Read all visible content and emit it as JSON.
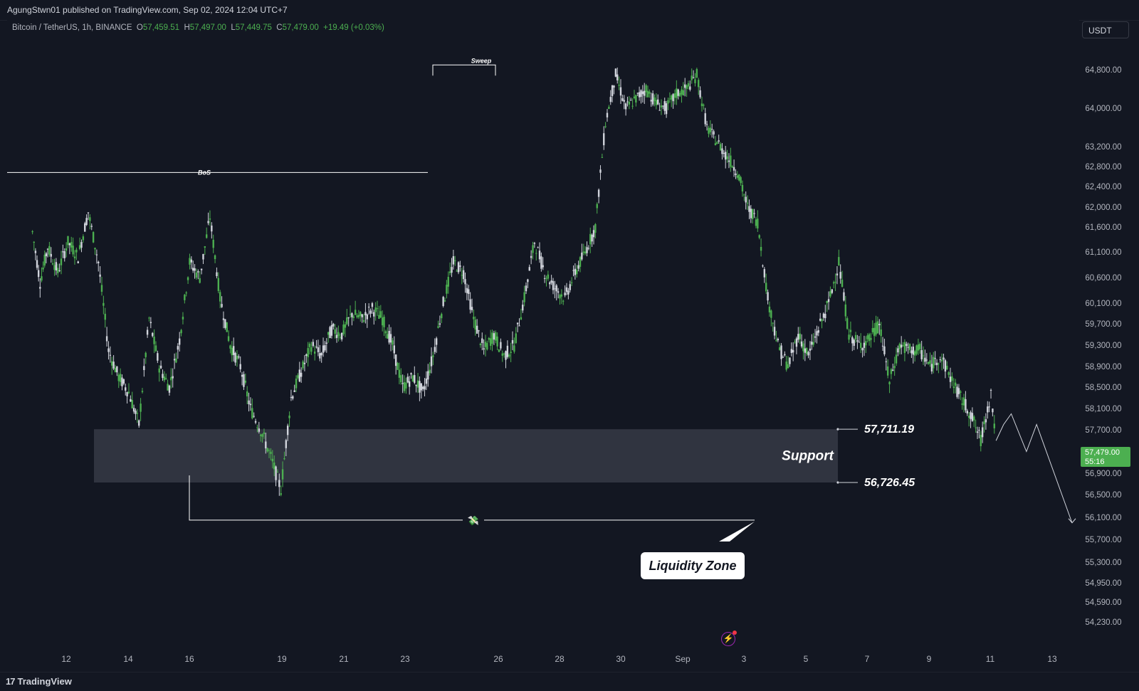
{
  "header": {
    "publish_line": "AgungStwn01 published on TradingView.com, Sep 02, 2024 12:04 UTC+7"
  },
  "symbol": {
    "name": "Bitcoin / TetherUS, 1h, BINANCE",
    "open_label": "O",
    "open": "57,459.51",
    "high_label": "H",
    "high": "57,497.00",
    "low_label": "L",
    "low": "57,449.75",
    "close_label": "C",
    "close": "57,479.00",
    "change": "+19.49 (+0.03%)"
  },
  "currency_button": "USDT",
  "price_tag": {
    "price": "57,479.00",
    "countdown": "55:16"
  },
  "footer": {
    "brand": "TradingView"
  },
  "annotations": {
    "bos": "BoS",
    "sweep": "Sweep",
    "support": "Support",
    "support_top": "57,711.19",
    "support_bottom": "56,726.45",
    "liquidity": "Liquidity Zone"
  },
  "colors": {
    "background": "#131722",
    "up": "#4caf50",
    "down": "#d1d4dc",
    "zone": "#363a45",
    "text": "#d1d4dc"
  },
  "chart_data": {
    "type": "candlestick",
    "title": "Bitcoin / TetherUS, 1h, BINANCE",
    "y_ticks": [
      64800,
      64000,
      63200,
      62800,
      62400,
      62000,
      61600,
      61100,
      60600,
      60100,
      59700,
      59300,
      58900,
      58500,
      58100,
      57700,
      56900,
      56500,
      56100,
      55700,
      55300,
      54950,
      54590,
      54230
    ],
    "y_tick_labels": [
      "64,800.00",
      "64,000.00",
      "63,200.00",
      "62,800.00",
      "62,400.00",
      "62,000.00",
      "61,600.00",
      "61,100.00",
      "60,600.00",
      "60,100.00",
      "59,700.00",
      "59,300.00",
      "58,900.00",
      "58,500.00",
      "58,100.00",
      "57,700.00",
      "56,900.00",
      "56,500.00",
      "56,100.00",
      "55,700.00",
      "55,300.00",
      "54,950.00",
      "54,590.00",
      "54,230.00"
    ],
    "x_tick_labels": [
      "12",
      "14",
      "16",
      "19",
      "21",
      "23",
      "26",
      "28",
      "30",
      "Sep",
      "3",
      "5",
      "7",
      "9",
      "11",
      "13"
    ],
    "last_price": 57479.0,
    "bos_level": 62680,
    "sweep_level": 64900,
    "support_zone": [
      56726.45,
      57711.19
    ],
    "liquidity_level": 56050,
    "path": [
      [
        10,
        61500
      ],
      [
        13,
        60500
      ],
      [
        16,
        61200
      ],
      [
        20,
        60700
      ],
      [
        24,
        61300
      ],
      [
        28,
        61000
      ],
      [
        32,
        61900
      ],
      [
        36,
        60900
      ],
      [
        40,
        59200
      ],
      [
        44,
        58700
      ],
      [
        48,
        58400
      ],
      [
        52,
        57800
      ],
      [
        56,
        59800
      ],
      [
        60,
        58900
      ],
      [
        64,
        58500
      ],
      [
        68,
        59400
      ],
      [
        72,
        60900
      ],
      [
        76,
        60600
      ],
      [
        80,
        61800
      ],
      [
        84,
        60200
      ],
      [
        88,
        59300
      ],
      [
        92,
        58900
      ],
      [
        96,
        58100
      ],
      [
        100,
        57700
      ],
      [
        104,
        57200
      ],
      [
        108,
        56600
      ],
      [
        112,
        58300
      ],
      [
        116,
        58800
      ],
      [
        120,
        59300
      ],
      [
        124,
        59100
      ],
      [
        128,
        59600
      ],
      [
        132,
        59500
      ],
      [
        136,
        59900
      ],
      [
        140,
        59800
      ],
      [
        144,
        60000
      ],
      [
        148,
        59800
      ],
      [
        152,
        59300
      ],
      [
        156,
        58500
      ],
      [
        160,
        58700
      ],
      [
        164,
        58400
      ],
      [
        168,
        59100
      ],
      [
        172,
        60100
      ],
      [
        176,
        60900
      ],
      [
        180,
        60700
      ],
      [
        184,
        59800
      ],
      [
        188,
        59200
      ],
      [
        192,
        59500
      ],
      [
        196,
        59100
      ],
      [
        200,
        59300
      ],
      [
        204,
        60200
      ],
      [
        208,
        61300
      ],
      [
        212,
        60700
      ],
      [
        216,
        60400
      ],
      [
        220,
        60200
      ],
      [
        224,
        60700
      ],
      [
        228,
        61100
      ],
      [
        232,
        61600
      ],
      [
        236,
        63700
      ],
      [
        240,
        64700
      ],
      [
        244,
        64000
      ],
      [
        248,
        64200
      ],
      [
        252,
        64400
      ],
      [
        256,
        64100
      ],
      [
        260,
        64000
      ],
      [
        264,
        64300
      ],
      [
        268,
        64400
      ],
      [
        272,
        64700
      ],
      [
        276,
        63600
      ],
      [
        280,
        63300
      ],
      [
        284,
        63000
      ],
      [
        288,
        62700
      ],
      [
        292,
        62000
      ],
      [
        296,
        61700
      ],
      [
        300,
        60200
      ],
      [
        304,
        59300
      ],
      [
        308,
        58900
      ],
      [
        312,
        59500
      ],
      [
        316,
        59100
      ],
      [
        320,
        59600
      ],
      [
        324,
        60100
      ],
      [
        328,
        60900
      ],
      [
        332,
        59500
      ],
      [
        336,
        59300
      ],
      [
        340,
        59400
      ],
      [
        344,
        59700
      ],
      [
        348,
        58600
      ],
      [
        352,
        59300
      ],
      [
        356,
        59200
      ],
      [
        360,
        59200
      ],
      [
        364,
        58900
      ],
      [
        368,
        59100
      ],
      [
        372,
        58700
      ],
      [
        376,
        58300
      ],
      [
        380,
        58000
      ],
      [
        384,
        57500
      ],
      [
        388,
        58400
      ],
      [
        390,
        57500
      ]
    ],
    "projection": [
      [
        390,
        57500
      ],
      [
        393,
        57800
      ],
      [
        396,
        58000
      ],
      [
        402,
        57300
      ],
      [
        406,
        57800
      ],
      [
        420,
        56000
      ]
    ],
    "x_scale": "index 0-420 maps to left 10px to right 1506px"
  }
}
